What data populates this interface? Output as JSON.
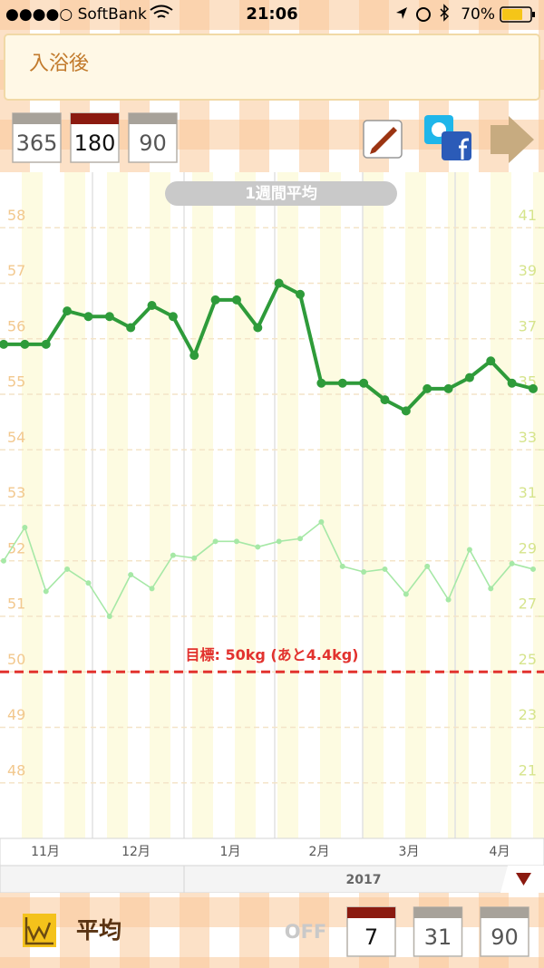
{
  "status_bar": {
    "carrier": "●●●●○ SoftBank",
    "time": "21:06",
    "battery": "70%"
  },
  "header": {
    "note": "入浴後",
    "periods": [
      "365",
      "180",
      "90"
    ],
    "selected_period_index": 1
  },
  "chart_data": {
    "type": "line",
    "title": "1週間平均",
    "series": [
      {
        "color": "#2e9b3a",
        "values": [
          55.9,
          55.9,
          55.9,
          56.5,
          56.4,
          56.4,
          56.2,
          56.6,
          56.4,
          55.7,
          56.7,
          56.7,
          56.2,
          57.0,
          56.8,
          55.2,
          55.2,
          55.2,
          54.9,
          54.7,
          55.1,
          55.1,
          55.3,
          55.6,
          55.2,
          55.1
        ]
      },
      {
        "color": "#a6e8a6",
        "axis": "y2",
        "values": [
          29.0,
          30.2,
          27.9,
          28.7,
          28.2,
          27.0,
          28.5,
          28.0,
          29.2,
          29.1,
          29.7,
          29.7,
          29.5,
          29.7,
          29.8,
          30.4,
          28.8,
          28.6,
          28.7,
          27.8,
          28.8,
          27.6,
          29.4,
          28.0,
          28.9,
          28.7
        ]
      }
    ],
    "ylim": [
      47,
      59
    ],
    "yticks": [
      48,
      49,
      50,
      51,
      52,
      53,
      54,
      55,
      56,
      57,
      58
    ],
    "y2lim": [
      19,
      43
    ],
    "y2ticks": [
      21,
      23,
      25,
      27,
      29,
      31,
      33,
      35,
      37,
      39,
      41
    ],
    "grid": true,
    "month_labels": [
      "11月",
      "12月",
      "1月",
      "2月",
      "3月",
      "4月"
    ],
    "year": "2017",
    "goal": 50,
    "goal_label": "目標: 50kg (あと4.4kg)",
    "goal_color": "#e2322e"
  },
  "footer": {
    "mode": "平均",
    "off": "OFF",
    "windows": [
      "7",
      "31",
      "90"
    ],
    "selected_window_index": 0
  }
}
